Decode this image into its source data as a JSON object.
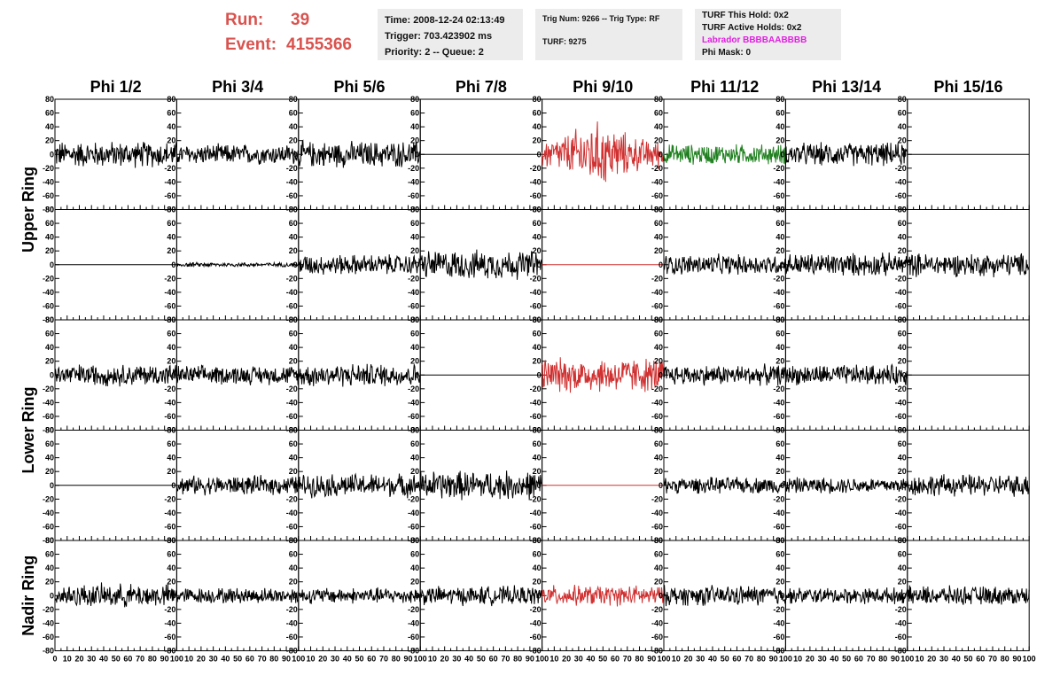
{
  "header": {
    "run_label": "Run:",
    "run_value": "39",
    "event_label": "Event:",
    "event_value": "4155366"
  },
  "info": {
    "time": "Time: 2008-12-24 02:13:49",
    "trigger": "Trigger: 703.423902 ms",
    "priority": "Priority: 2 -- Queue: 2",
    "trig_num": "Trig Num: 9266 -- Trig Type: RF",
    "turf": "TURF: 9275",
    "turf_hold": "TURF This Hold: 0x2",
    "turf_active": "TURF Active Holds: 0x2",
    "labrador": "Labrador BBBBAABBBB",
    "phi_mask": "Phi Mask: 0"
  },
  "colors": {
    "run_text": "#d9534f",
    "labrador_text": "#e020e0",
    "trace_default": "#000000",
    "trace_red": "#d03030",
    "trace_green": "#208020",
    "panel_bg": "#ececec"
  },
  "chart_data": {
    "type": "line",
    "columns": [
      "Phi 1/2",
      "Phi 3/4",
      "Phi 5/6",
      "Phi 7/8",
      "Phi 9/10",
      "Phi 11/12",
      "Phi 13/14",
      "Phi 15/16"
    ],
    "ring_labels": [
      "Upper Ring",
      "Lower Ring",
      "Nadir Ring"
    ],
    "ylim": [
      -80,
      80
    ],
    "xlim": [
      0,
      100
    ],
    "y_ticks": [
      -80,
      -60,
      -40,
      -20,
      0,
      20,
      40,
      60,
      80
    ],
    "y_tick_labels": [
      "-80",
      "-60",
      "-40",
      "-20",
      "0",
      "20",
      "40",
      "60",
      "80"
    ],
    "x_ticks": [
      0,
      10,
      20,
      30,
      40,
      50,
      60,
      70,
      80,
      90,
      100
    ],
    "x_tick_labels": [
      "0",
      "10",
      "20",
      "30",
      "40",
      "50",
      "60",
      "70",
      "80",
      "90",
      "100"
    ],
    "rows": [
      [
        "noise",
        "noise",
        "noise",
        "flat",
        "noise-red",
        "noise-green",
        "noise",
        "flat"
      ],
      [
        "flat",
        "small",
        "noise",
        "noise",
        "flat-red",
        "noise",
        "noise",
        "noise"
      ],
      [
        "noise",
        "noise",
        "noise",
        "flat",
        "noise-red",
        "noise",
        "noise",
        "flat"
      ],
      [
        "flat",
        "noise",
        "noise",
        "noise",
        "flat-red",
        "noise",
        "noise",
        "noise"
      ],
      [
        "noise",
        "noise",
        "noise",
        "noise",
        "noise-red",
        "noise",
        "noise",
        "noise"
      ]
    ],
    "amplitudes": [
      [
        18,
        14,
        18,
        0,
        32,
        14,
        16,
        0
      ],
      [
        0,
        3,
        14,
        20,
        0,
        14,
        16,
        16
      ],
      [
        15,
        13,
        16,
        0,
        24,
        14,
        14,
        0
      ],
      [
        0,
        13,
        16,
        20,
        0,
        11,
        11,
        15
      ],
      [
        16,
        11,
        11,
        13,
        14,
        14,
        11,
        13
      ]
    ]
  }
}
